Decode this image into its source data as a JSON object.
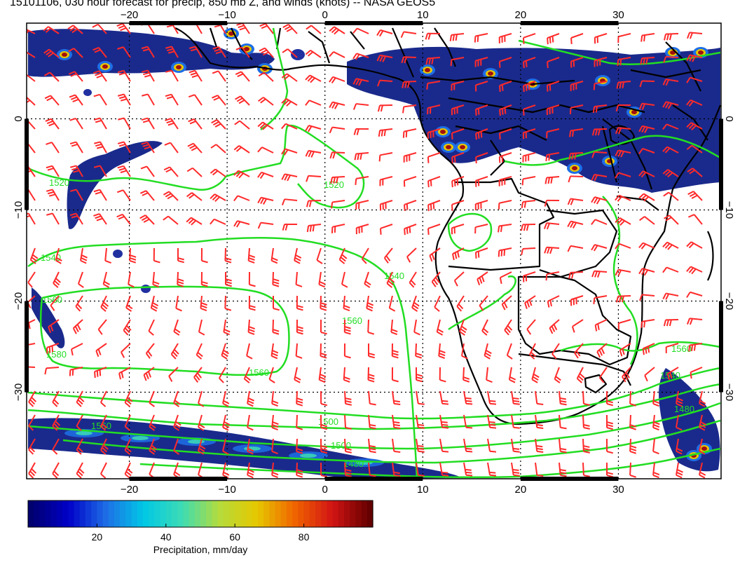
{
  "title": "15101106, 030 hour forecast for precip, 850 mb Z, and winds (knots) -- NASA GEOS5",
  "map": {
    "lon_min": -30.5,
    "lon_max": 40.5,
    "lat_min": -39.5,
    "lat_max": 10.5,
    "lon_ticks": [
      -20,
      -10,
      0,
      10,
      20,
      30
    ],
    "lat_ticks": [
      0,
      -10,
      -20,
      -30
    ],
    "lon_labels": [
      "−20",
      "−10",
      "0",
      "10",
      "20",
      "30"
    ],
    "lat_labels": [
      "0",
      "−10",
      "−20",
      "−30"
    ],
    "land_color": "#000000",
    "contour_color": "#22dd22",
    "wind_color": "#ff2a2a",
    "precip_base": "#1a2a8c"
  },
  "contours": [
    {
      "label": "1520",
      "level": 1520
    },
    {
      "label": "1540",
      "level": 1540
    },
    {
      "label": "1560",
      "level": 1560
    },
    {
      "label": "1580",
      "level": 1580
    },
    {
      "label": "1500",
      "level": 1500
    },
    {
      "label": "1480",
      "level": 1480
    }
  ],
  "colorbar": {
    "title": "Precipitation, mm/day",
    "tick_values": [
      20,
      40,
      60,
      80
    ],
    "tick_labels": [
      "20",
      "40",
      "60",
      "80"
    ],
    "range": [
      0,
      100
    ],
    "colors": [
      "#00006e",
      "#0000c8",
      "#1e6ee6",
      "#00c8e6",
      "#3cdcb4",
      "#b4dc3c",
      "#e6c800",
      "#f06400",
      "#d21414",
      "#640000"
    ]
  }
}
